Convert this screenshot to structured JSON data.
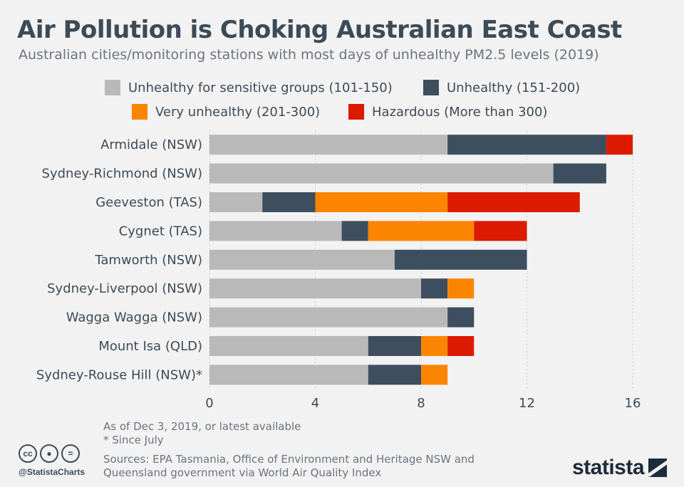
{
  "title": "Air Pollution is Choking Australian East Coast",
  "subtitle": "Australian cities/monitoring stations with most days of unhealthy PM2.5 levels (2019)",
  "legend": [
    {
      "label": "Unhealthy for sensitive groups (101-150)",
      "color": "#b9b9b9"
    },
    {
      "label": "Unhealthy (151-200)",
      "color": "#3d4e5e"
    },
    {
      "label": "Very unhealthy (201-300)",
      "color": "#fb8500"
    },
    {
      "label": "Hazardous (More than 300)",
      "color": "#dc1a00"
    }
  ],
  "chart_data": {
    "type": "bar",
    "orientation": "horizontal",
    "stacked": true,
    "categories": [
      "Armidale (NSW)",
      "Sydney-Richmond (NSW)",
      "Geeveston (TAS)",
      "Cygnet (TAS)",
      "Tamworth (NSW)",
      "Sydney-Liverpool (NSW)",
      "Wagga Wagga (NSW)",
      "Mount Isa (QLD)",
      "Sydney-Rouse Hill (NSW)*"
    ],
    "series": [
      {
        "name": "Unhealthy for sensitive groups (101-150)",
        "color": "#b9b9b9",
        "values": [
          9,
          13,
          2,
          5,
          7,
          8,
          9,
          6,
          6
        ]
      },
      {
        "name": "Unhealthy (151-200)",
        "color": "#3d4e5e",
        "values": [
          6,
          2,
          2,
          1,
          5,
          1,
          1,
          2,
          2
        ]
      },
      {
        "name": "Very unhealthy (201-300)",
        "color": "#fb8500",
        "values": [
          0,
          0,
          5,
          4,
          0,
          1,
          0,
          1,
          1
        ]
      },
      {
        "name": "Hazardous (More than 300)",
        "color": "#dc1a00",
        "values": [
          1,
          0,
          5,
          2,
          0,
          0,
          0,
          1,
          0
        ]
      }
    ],
    "xlim": [
      0,
      16
    ],
    "xticks": [
      0,
      4,
      8,
      12,
      16
    ],
    "grid": true
  },
  "notes": {
    "line1": "As of Dec 3, 2019, or latest available",
    "line2": "* Since July"
  },
  "sources": {
    "line1": "Sources: EPA Tasmania, Office of Environment and Heritage NSW and",
    "line2": "Queensland government via World Air Quality Index"
  },
  "footer": {
    "handle": "@StatistaCharts",
    "brand": "statista",
    "cc_icons": [
      "cc-icon",
      "by-icon",
      "nd-icon"
    ]
  }
}
